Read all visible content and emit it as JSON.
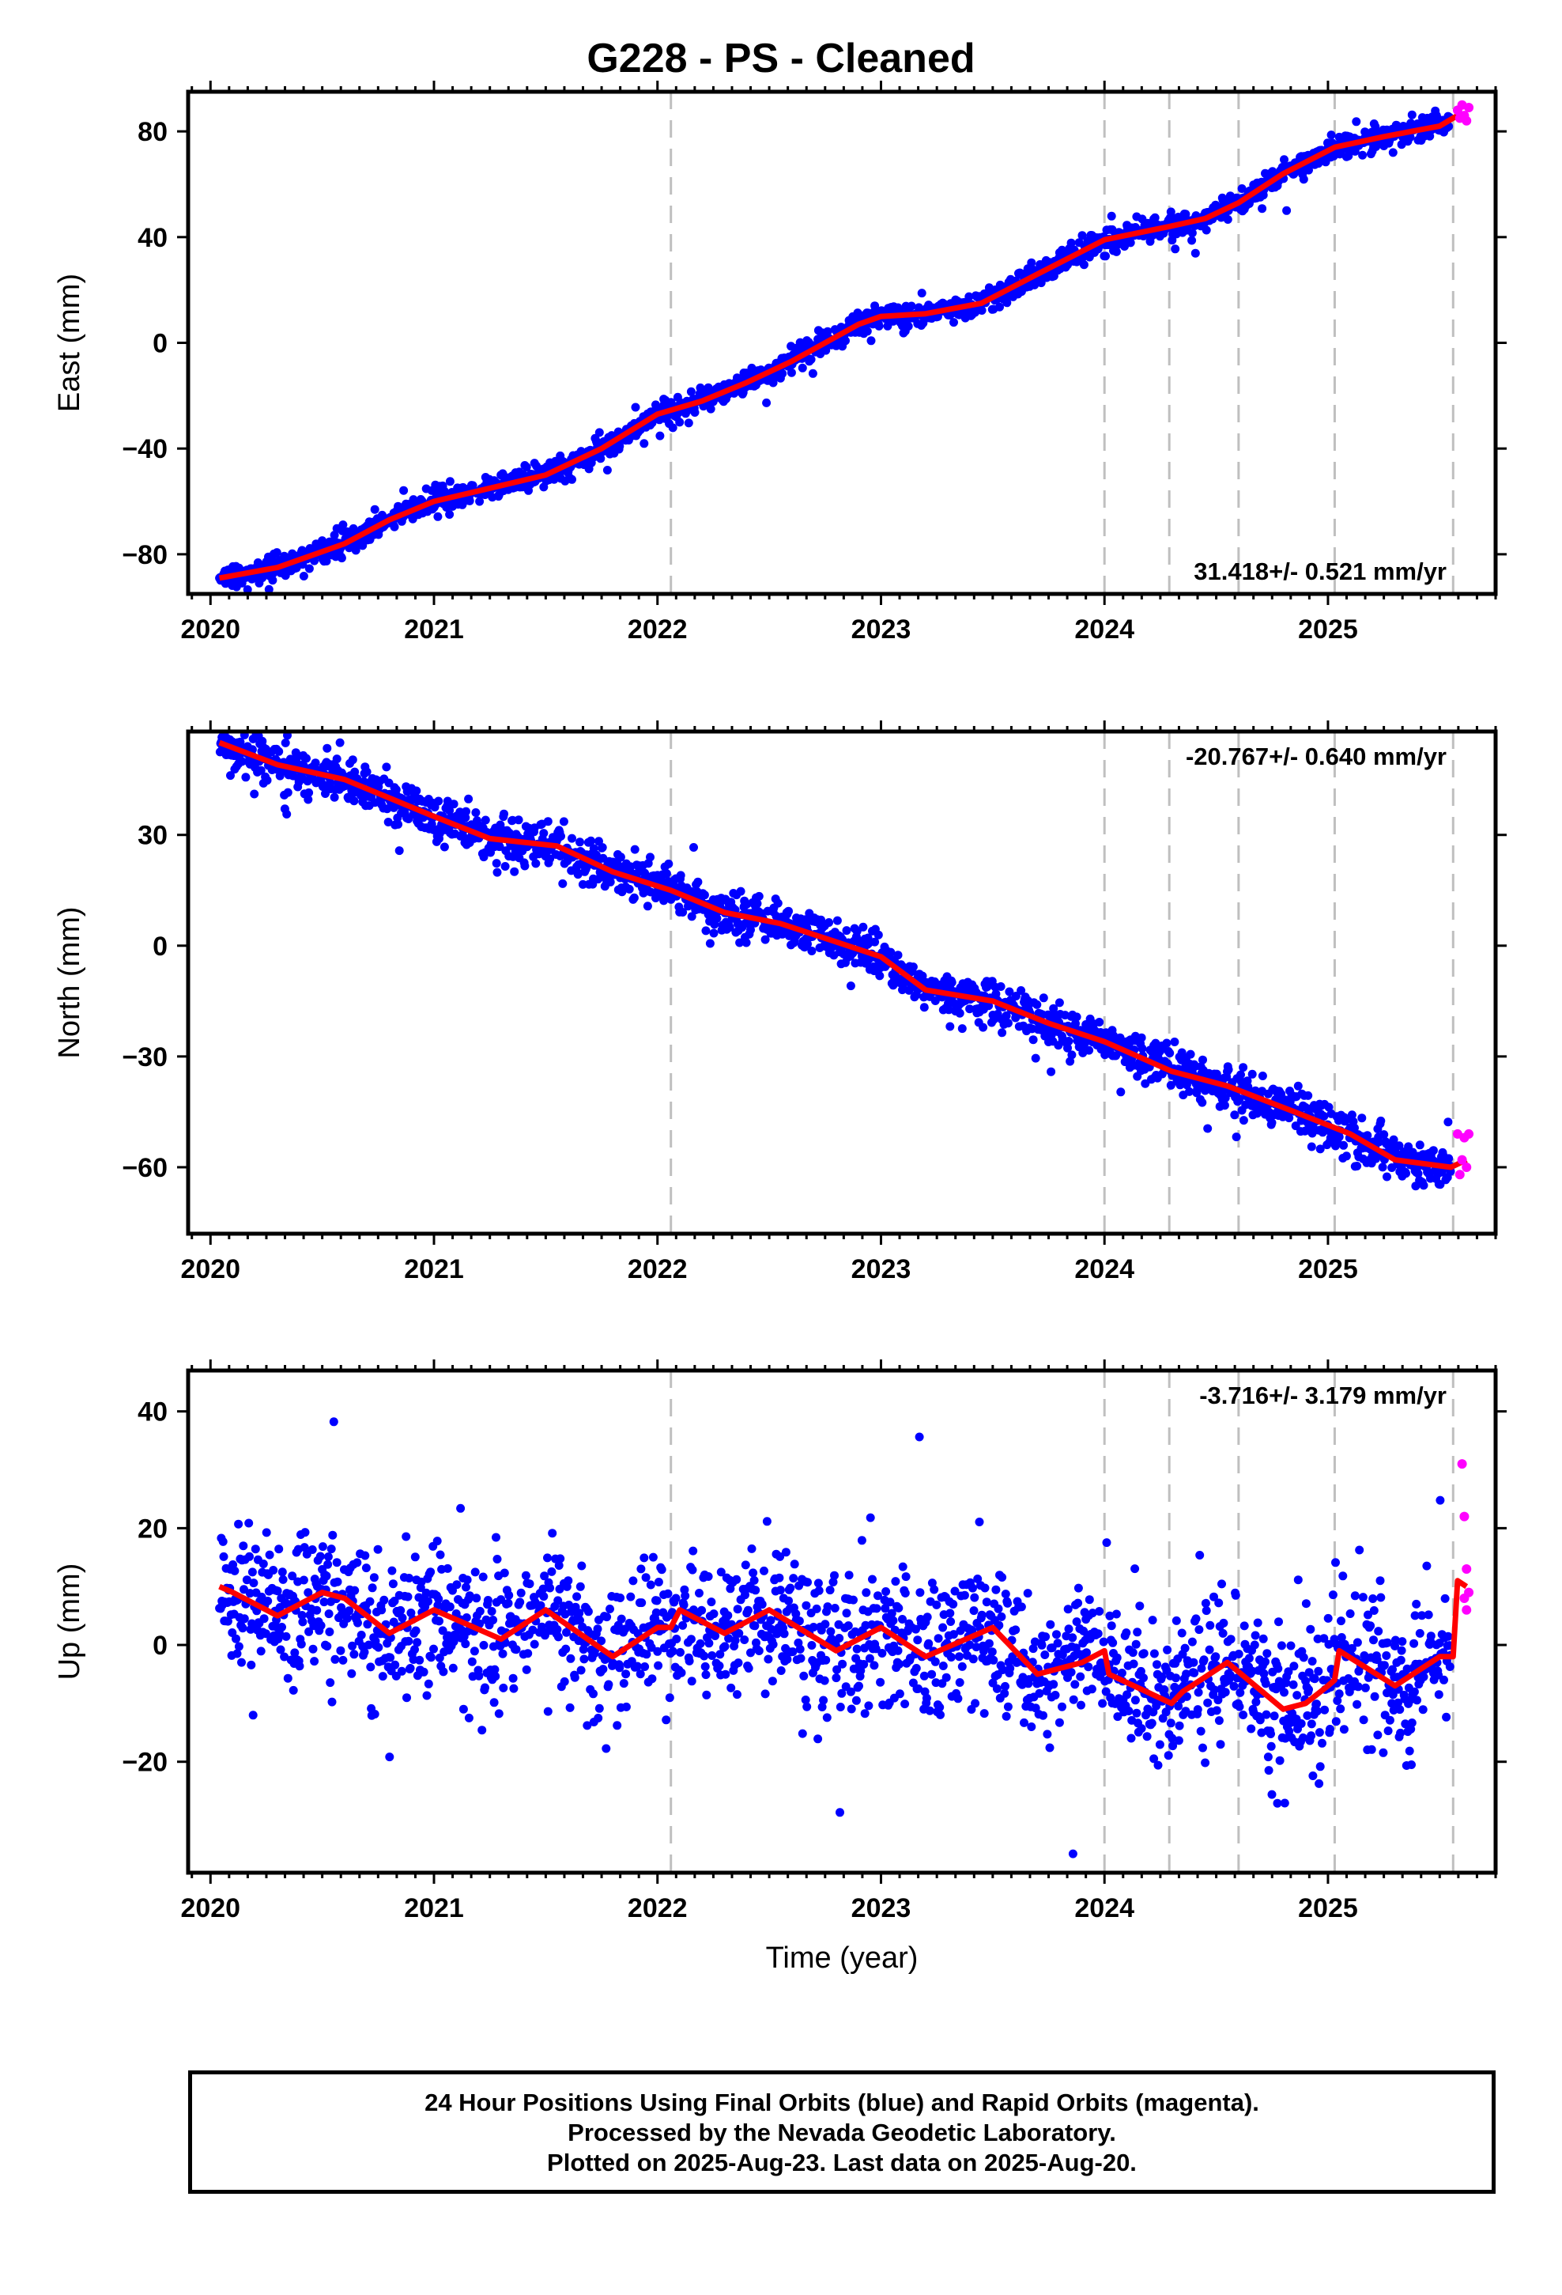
{
  "title": "G228  - PS - Cleaned",
  "footer": {
    "line1": "24 Hour Positions Using Final Orbits (blue) and Rapid Orbits (magenta).",
    "line2": "Processed by the Nevada Geodetic Laboratory.",
    "line3": "Plotted on 2025-Aug-23. Last data on 2025-Aug-20."
  },
  "colors": {
    "final_orbits": "#0000ff",
    "rapid_orbits": "#ff00ff",
    "model": "#ff0000",
    "event_lines": "#bfbfbf"
  },
  "chart_data": [
    {
      "type": "scatter",
      "component": "East",
      "ylabel": "East (mm)",
      "xlabel": "",
      "xlim": [
        2019.9,
        2025.75
      ],
      "ylim": [
        -95,
        95
      ],
      "xticks": [
        2020,
        2021,
        2022,
        2023,
        2024,
        2025
      ],
      "yticks": [
        -80,
        -40,
        0,
        40,
        80
      ],
      "rate_text": "31.418+/- 0.521 mm/yr",
      "rate_position": "bottom-right",
      "vlines": [
        2022.06,
        2024.0,
        2024.29,
        2024.6,
        2025.03,
        2025.56
      ],
      "model": {
        "x": [
          2020.04,
          2020.3,
          2020.6,
          2020.8,
          2021.0,
          2021.2,
          2021.5,
          2021.75,
          2022.0,
          2022.2,
          2022.4,
          2022.6,
          2022.9,
          2023.0,
          2023.2,
          2023.45,
          2023.7,
          2024.0,
          2024.29,
          2024.45,
          2024.6,
          2024.8,
          2025.03,
          2025.25,
          2025.5,
          2025.6
        ],
        "y": [
          -89,
          -85,
          -76,
          -67,
          -60,
          -56,
          -50,
          -40,
          -27,
          -22,
          -15,
          -7,
          7,
          10,
          11,
          15,
          26,
          39,
          44,
          47,
          53,
          64,
          74,
          78,
          82,
          87
        ]
      },
      "final_orbits": {
        "start": 2020.04,
        "end": 2025.55,
        "scatter_mm": 2.2
      },
      "rapid_orbits": {
        "x": [
          2025.58,
          2025.59,
          2025.6,
          2025.61,
          2025.62,
          2025.63
        ],
        "y": [
          88,
          85,
          90,
          86,
          84,
          89
        ]
      }
    },
    {
      "type": "scatter",
      "component": "North",
      "ylabel": "North (mm)",
      "xlabel": "",
      "xlim": [
        2019.9,
        2025.75
      ],
      "ylim": [
        -78,
        58
      ],
      "xticks": [
        2020,
        2021,
        2022,
        2023,
        2024,
        2025
      ],
      "yticks": [
        -60,
        -30,
        0,
        30
      ],
      "rate_text": "-20.767+/- 0.640 mm/yr",
      "rate_position": "top-right",
      "vlines": [
        2022.06,
        2024.0,
        2024.29,
        2024.6,
        2025.03,
        2025.56
      ],
      "model": {
        "x": [
          2020.04,
          2020.3,
          2020.6,
          2020.8,
          2021.0,
          2021.25,
          2021.55,
          2021.8,
          2022.06,
          2022.3,
          2022.55,
          2022.8,
          2023.0,
          2023.2,
          2023.5,
          2023.75,
          2024.0,
          2024.3,
          2024.55,
          2024.85,
          2025.1,
          2025.3,
          2025.55,
          2025.62
        ],
        "y": [
          55,
          49,
          45,
          40,
          35,
          29,
          27,
          20,
          15,
          9,
          6,
          1,
          -3,
          -12,
          -15,
          -21,
          -26,
          -34,
          -38,
          -45,
          -51,
          -58,
          -60,
          -58
        ]
      },
      "final_orbits": {
        "start": 2020.04,
        "end": 2025.55,
        "scatter_mm": 3.0
      },
      "rapid_orbits": {
        "x": [
          2025.58,
          2025.59,
          2025.6,
          2025.61,
          2025.62,
          2025.63
        ],
        "y": [
          -51,
          -62,
          -58,
          -52,
          -60,
          -51
        ]
      }
    },
    {
      "type": "scatter",
      "component": "Up",
      "ylabel": "Up (mm)",
      "xlabel": "Time (year)",
      "xlim": [
        2019.9,
        2025.75
      ],
      "ylim": [
        -39,
        47
      ],
      "xticks": [
        2020,
        2021,
        2022,
        2023,
        2024,
        2025
      ],
      "yticks": [
        -20,
        0,
        20,
        40
      ],
      "rate_text": "-3.716+/- 3.179 mm/yr",
      "rate_position": "top-right",
      "vlines": [
        2022.06,
        2024.0,
        2024.29,
        2024.6,
        2025.03,
        2025.56
      ],
      "model": {
        "x": [
          2020.04,
          2020.1,
          2020.3,
          2020.5,
          2020.6,
          2020.8,
          2021.0,
          2021.3,
          2021.5,
          2021.8,
          2022.0,
          2022.06,
          2022.1,
          2022.3,
          2022.5,
          2022.8,
          2023.0,
          2023.2,
          2023.5,
          2023.7,
          2023.9,
          2024.0,
          2024.02,
          2024.3,
          2024.35,
          2024.55,
          2024.8,
          2024.9,
          2025.0,
          2025.03,
          2025.05,
          2025.3,
          2025.5,
          2025.56,
          2025.58,
          2025.62
        ],
        "y": [
          10,
          9,
          5,
          9,
          8,
          2,
          6,
          1,
          6,
          -2,
          3,
          3,
          6,
          2,
          6,
          -1,
          3,
          -2,
          3,
          -5,
          -3,
          -1,
          -5,
          -10,
          -8,
          -3,
          -11,
          -10,
          -7,
          -6,
          -1,
          -7,
          -2,
          -2,
          11,
          10
        ]
      },
      "final_orbits": {
        "start": 2020.04,
        "end": 2025.55,
        "scatter_mm": 6.0
      },
      "rapid_orbits": {
        "x": [
          2025.6,
          2025.61,
          2025.62,
          2025.63,
          2025.62,
          2025.61
        ],
        "y": [
          31,
          22,
          13,
          9,
          6,
          8
        ]
      }
    }
  ]
}
